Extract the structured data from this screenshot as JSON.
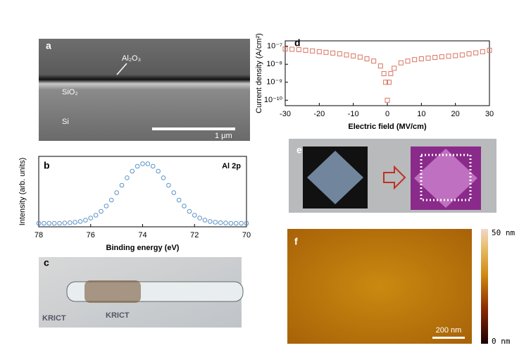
{
  "panels": {
    "a": {
      "label": "a",
      "texts": [
        "Al₂O₃",
        "SiO₂",
        "Si",
        "1 μm"
      ]
    },
    "c": {
      "label": "c",
      "texts": [
        "KRICT",
        "KRICT"
      ]
    },
    "e": {
      "label": "e"
    },
    "f": {
      "label": "f",
      "colorbar_max": "50 nm",
      "colorbar_min": "0 nm",
      "scale_bar": "200 nm"
    }
  },
  "chart_data": [
    {
      "type": "scatter",
      "panel": "b",
      "annotation": "Al 2p",
      "x_label": "Binding energy (eV)",
      "y_label": "Intensity (arb. units)",
      "color": "#5b93c9",
      "xlim": [
        78,
        70
      ],
      "xticks": [
        78,
        76,
        74,
        72,
        70
      ],
      "ylim": [
        0,
        100
      ],
      "x": [
        78.0,
        77.8,
        77.6,
        77.4,
        77.2,
        77.0,
        76.8,
        76.6,
        76.4,
        76.2,
        76.0,
        75.8,
        75.6,
        75.4,
        75.2,
        75.0,
        74.8,
        74.6,
        74.4,
        74.2,
        74.0,
        73.8,
        73.6,
        73.4,
        73.2,
        73.0,
        72.8,
        72.6,
        72.4,
        72.2,
        72.0,
        71.8,
        71.6,
        71.4,
        71.2,
        71.0,
        70.8,
        70.6,
        70.4,
        70.2,
        70.0
      ],
      "values": [
        5,
        5,
        5,
        5,
        5,
        5.4,
        5.8,
        6.5,
        7.6,
        9.5,
        12.4,
        16.5,
        22,
        29.5,
        38,
        48.5,
        59,
        69.6,
        79,
        86,
        89.5,
        89.5,
        86,
        79,
        69.6,
        59,
        48.5,
        38,
        29.5,
        22,
        16.5,
        12.4,
        9.5,
        7.6,
        6.5,
        5.8,
        5.4,
        5,
        5,
        5,
        5
      ]
    },
    {
      "type": "scatter",
      "panel": "d",
      "x_label": "Electric field (MV/cm)",
      "y_label": "Current density (A/cm²)",
      "color": "#d9735f",
      "log_y": true,
      "xlim": [
        -30,
        30
      ],
      "xticks": [
        -30,
        -20,
        -10,
        0,
        10,
        20,
        30
      ],
      "ylim": [
        5e-11,
        2e-07
      ],
      "yticks": [
        {
          "value": 1e-10,
          "label": "10⁻¹⁰"
        },
        {
          "value": 1e-09,
          "label": "10⁻⁹"
        },
        {
          "value": 1e-08,
          "label": "10⁻⁸"
        },
        {
          "value": 1e-07,
          "label": "10⁻⁷"
        }
      ],
      "x": [
        -30,
        -28,
        -26,
        -24,
        -22,
        -20,
        -18,
        -16,
        -14,
        -12,
        -10,
        -8,
        -6,
        -4,
        -2,
        -1,
        -0.5,
        0,
        0.5,
        1,
        2,
        4,
        6,
        8,
        10,
        12,
        14,
        16,
        18,
        20,
        22,
        24,
        26,
        28,
        30
      ],
      "values": [
        7e-08,
        6.8e-08,
        6.5e-08,
        6e-08,
        5.5e-08,
        5e-08,
        4.6e-08,
        4.2e-08,
        3.8e-08,
        3.3e-08,
        2.9e-08,
        2.5e-08,
        2e-08,
        1.5e-08,
        8e-09,
        3e-09,
        1e-09,
        1e-10,
        1e-09,
        3e-09,
        6e-09,
        1.2e-08,
        1.5e-08,
        1.8e-08,
        2e-08,
        2.2e-08,
        2.4e-08,
        2.6e-08,
        2.8e-08,
        3e-08,
        3.3e-08,
        3.8e-08,
        4.3e-08,
        5e-08,
        6e-08
      ]
    }
  ]
}
